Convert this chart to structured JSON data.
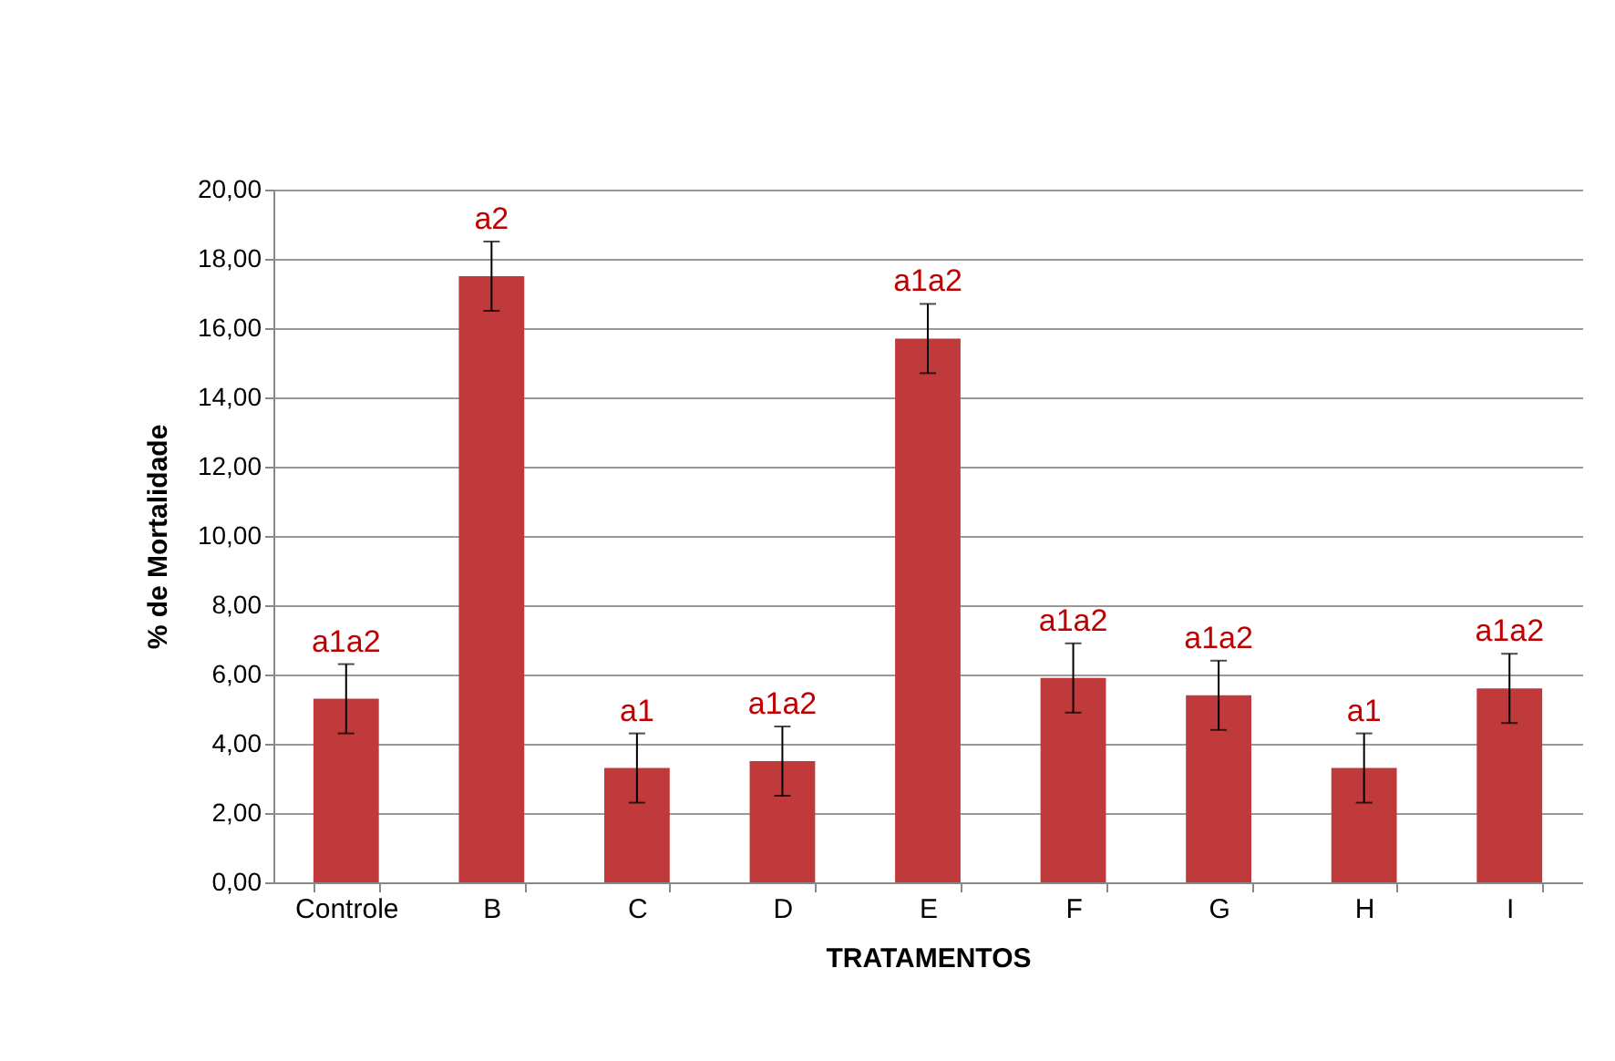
{
  "chart_data": {
    "type": "bar",
    "xlabel": "TRATAMENTOS",
    "ylabel": "% de Mortalidade",
    "categories": [
      "Controle",
      "B",
      "C",
      "D",
      "E",
      "F",
      "G",
      "H",
      "I"
    ],
    "values": [
      5.3,
      17.5,
      3.3,
      3.5,
      15.7,
      5.9,
      5.4,
      3.3,
      5.6
    ],
    "errors": [
      1,
      1,
      1,
      1,
      1,
      1,
      1,
      1,
      1
    ],
    "color": "#c0393b",
    "ylim": [
      0,
      20
    ],
    "yticks": [
      {
        "value": 0,
        "label": "0,00"
      },
      {
        "value": 2,
        "label": "2,00"
      },
      {
        "value": 4,
        "label": "4,00"
      },
      {
        "value": 6,
        "label": "6,00"
      },
      {
        "value": 8,
        "label": "8,00"
      },
      {
        "value": 10,
        "label": "10,00"
      },
      {
        "value": 12,
        "label": "12,00"
      },
      {
        "value": 14,
        "label": "14,00"
      },
      {
        "value": 16,
        "label": "16,00"
      },
      {
        "value": 18,
        "label": "18,00"
      },
      {
        "value": 20,
        "label": "20,00"
      }
    ],
    "grid": "y",
    "annotations": [
      {
        "text": "a1a2",
        "x": "Controle",
        "y": 5.3
      },
      {
        "text": "a2",
        "x": "B",
        "y": 17.5
      },
      {
        "text": "a1",
        "x": "C",
        "y": 3.3
      },
      {
        "text": "a1a2",
        "x": "D",
        "y": 3.5
      },
      {
        "text": "a1a2",
        "x": "E",
        "y": 15.7
      },
      {
        "text": "a1a2",
        "x": "F",
        "y": 5.9
      },
      {
        "text": "a1a2",
        "x": "G",
        "y": 5.4
      },
      {
        "text": "a1",
        "x": "H",
        "y": 3.3
      },
      {
        "text": "a1a2",
        "x": "I",
        "y": 5.6
      }
    ]
  }
}
